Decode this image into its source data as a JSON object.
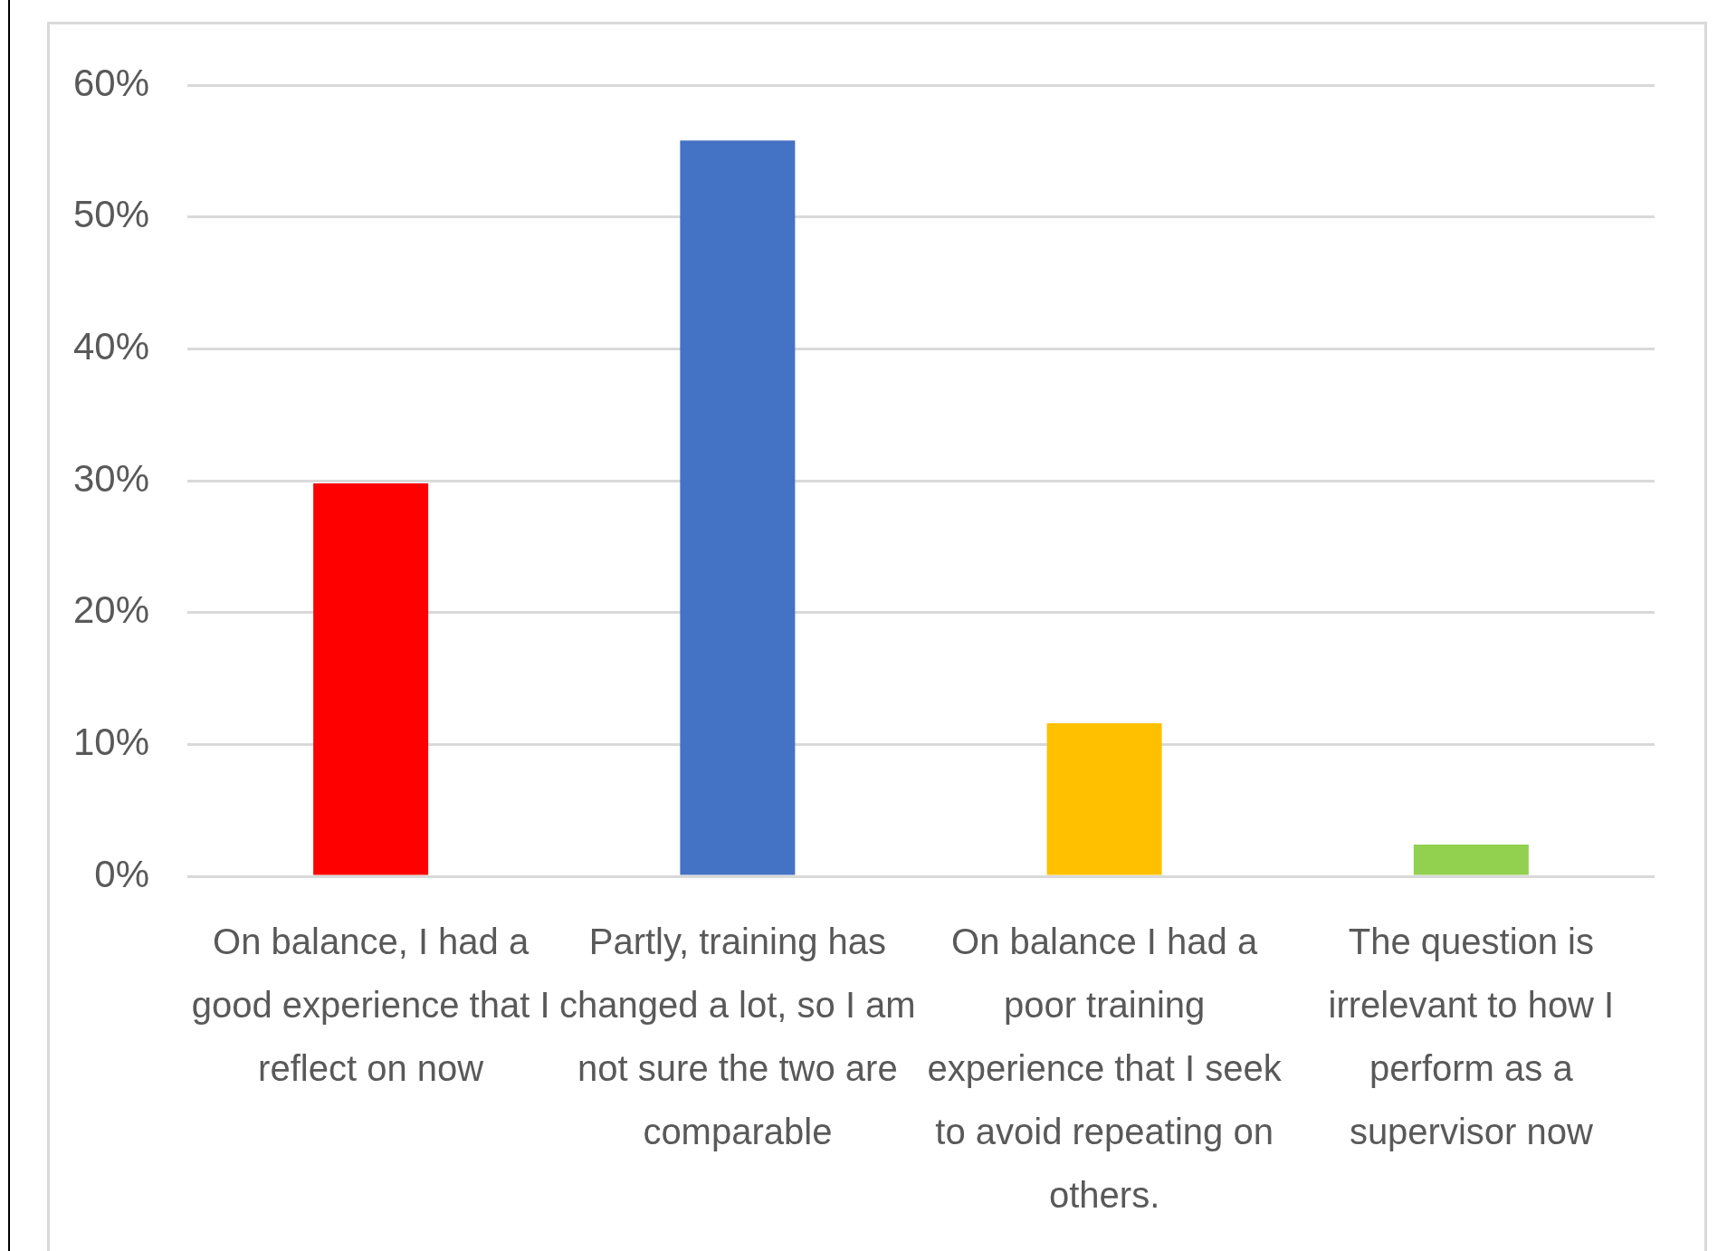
{
  "chart_data": {
    "type": "bar",
    "categories": [
      "On balance, I had a good experience that I reflect on now",
      "Partly, training has changed a lot, so I am not sure the two are comparable",
      "On balance I had a poor training experience that I seek to avoid repeating on others.",
      "The question is irrelevant to how I perform as a supervisor now"
    ],
    "values": [
      29.8,
      55.8,
      11.6,
      2.4
    ],
    "colors": [
      "#ff0000",
      "#4472c4",
      "#ffc000",
      "#92d050"
    ],
    "ylim": [
      0,
      60
    ],
    "yticks": [
      {
        "value": 0,
        "label": "0%"
      },
      {
        "value": 10,
        "label": "10%"
      },
      {
        "value": 20,
        "label": "20%"
      },
      {
        "value": 30,
        "label": "30%"
      },
      {
        "value": 40,
        "label": "40%"
      },
      {
        "value": 50,
        "label": "50%"
      },
      {
        "value": 60,
        "label": "60%"
      }
    ],
    "grid": "y"
  }
}
